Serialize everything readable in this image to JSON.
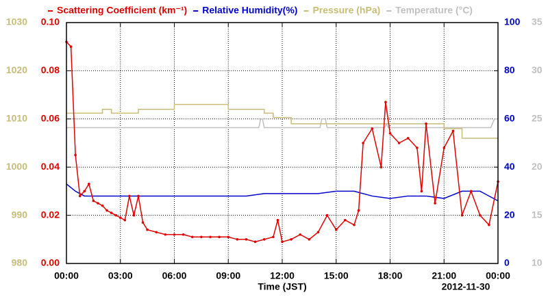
{
  "chart_data": {
    "type": "line",
    "xlabel": "Time (JST)",
    "date_label": "2012-11-30",
    "grid": true,
    "xlim": [
      0,
      24
    ],
    "xticks": [
      {
        "value": 0,
        "label": "00:00"
      },
      {
        "value": 3,
        "label": "03:00"
      },
      {
        "value": 6,
        "label": "06:00"
      },
      {
        "value": 9,
        "label": "09:00"
      },
      {
        "value": 12,
        "label": "12:00"
      },
      {
        "value": 15,
        "label": "15:00"
      },
      {
        "value": 18,
        "label": "18:00"
      },
      {
        "value": 21,
        "label": "21:00"
      },
      {
        "value": 24,
        "label": "00:00"
      }
    ],
    "ylim": [
      0,
      0.1
    ],
    "yticks": [
      {
        "value": 0,
        "label": "0.00"
      },
      {
        "value": 0.02,
        "label": "0.02"
      },
      {
        "value": 0.04,
        "label": "0.04"
      },
      {
        "value": 0.06,
        "label": "0.06"
      },
      {
        "value": 0.08,
        "label": "0.08"
      },
      {
        "value": 0.1,
        "label": "0.10"
      }
    ],
    "y2lim": [
      0,
      100
    ],
    "y2ticks": [
      0,
      20,
      40,
      60,
      80,
      100
    ],
    "y3lim": [
      980,
      1030
    ],
    "y3ticks": [
      980,
      990,
      1000,
      1010,
      1020,
      1030
    ],
    "y4lim": [
      10,
      35
    ],
    "y4ticks": [
      10,
      15,
      20,
      25,
      30,
      35
    ],
    "series": [
      {
        "name": "Scattering Coefficient (km⁻¹)",
        "color": "#e00000",
        "axis": "y",
        "marker": "circle",
        "x": [
          0,
          0.25,
          0.5,
          0.75,
          1,
          1.25,
          1.5,
          1.75,
          2,
          2.25,
          2.5,
          2.75,
          3,
          3.25,
          3.5,
          3.75,
          4,
          4.25,
          4.5,
          5,
          5.5,
          6,
          6.5,
          7,
          7.5,
          8,
          8.5,
          9,
          9.5,
          10,
          10.5,
          11,
          11.5,
          11.75,
          12,
          12.5,
          13,
          13.5,
          14,
          14.5,
          15,
          15.5,
          16,
          16.25,
          16.5,
          17,
          17.5,
          17.75,
          18,
          18.5,
          19,
          19.5,
          19.75,
          20,
          20.5,
          21,
          21.5,
          22,
          22.5,
          23,
          23.5,
          24
        ],
        "values": [
          0.092,
          0.09,
          0.045,
          0.028,
          0.03,
          0.033,
          0.026,
          0.025,
          0.024,
          0.022,
          0.021,
          0.02,
          0.019,
          0.018,
          0.028,
          0.02,
          0.028,
          0.017,
          0.014,
          0.013,
          0.012,
          0.012,
          0.012,
          0.011,
          0.011,
          0.011,
          0.011,
          0.011,
          0.01,
          0.01,
          0.009,
          0.01,
          0.011,
          0.018,
          0.009,
          0.01,
          0.012,
          0.01,
          0.013,
          0.02,
          0.014,
          0.018,
          0.016,
          0.022,
          0.05,
          0.056,
          0.04,
          0.067,
          0.054,
          0.05,
          0.052,
          0.048,
          0.03,
          0.058,
          0.025,
          0.048,
          0.055,
          0.02,
          0.03,
          0.02,
          0.016,
          0.034
        ]
      },
      {
        "name": "Relative Humidity(%)",
        "color": "#0000cc",
        "axis": "y2",
        "x": [
          0,
          0.5,
          1,
          2,
          3,
          4,
          5,
          6,
          7,
          8,
          9,
          10,
          11,
          12,
          13,
          14,
          15,
          16,
          17,
          18,
          19,
          20,
          21,
          22,
          23,
          24
        ],
        "values": [
          33,
          30,
          28,
          28,
          28,
          28,
          28,
          28,
          28,
          28,
          28,
          28,
          29,
          29,
          29,
          29,
          30,
          30,
          28,
          27,
          28,
          28,
          27,
          30,
          30,
          26
        ]
      },
      {
        "name": "Pressure (hPa)",
        "color": "#c8bc78",
        "axis": "y3",
        "x": [
          0,
          2,
          2,
          2.5,
          2.5,
          4,
          4,
          6,
          6,
          9,
          9,
          11,
          11,
          11.5,
          11.5,
          12.5,
          12.5,
          21,
          21,
          22,
          22,
          24
        ],
        "values": [
          1011.2,
          1011.2,
          1012,
          1012,
          1011.2,
          1011.2,
          1012,
          1012,
          1013,
          1013,
          1012,
          1012,
          1011.2,
          1011.2,
          1010.3,
          1010.3,
          1009,
          1009,
          1008,
          1008,
          1006,
          1006
        ]
      },
      {
        "name": "Temperature (°C)",
        "color": "#c0c0c0",
        "axis": "y4",
        "x": [
          0,
          10.7,
          10.8,
          10.9,
          11,
          14.1,
          14.2,
          14.4,
          14.5,
          17.7,
          17.8,
          17.9,
          23.6,
          23.8,
          24
        ],
        "values": [
          24.1,
          24.1,
          25,
          25,
          24.1,
          24.1,
          25,
          25,
          24.1,
          24.1,
          24.5,
          24.1,
          24.1,
          25,
          25
        ]
      }
    ]
  }
}
